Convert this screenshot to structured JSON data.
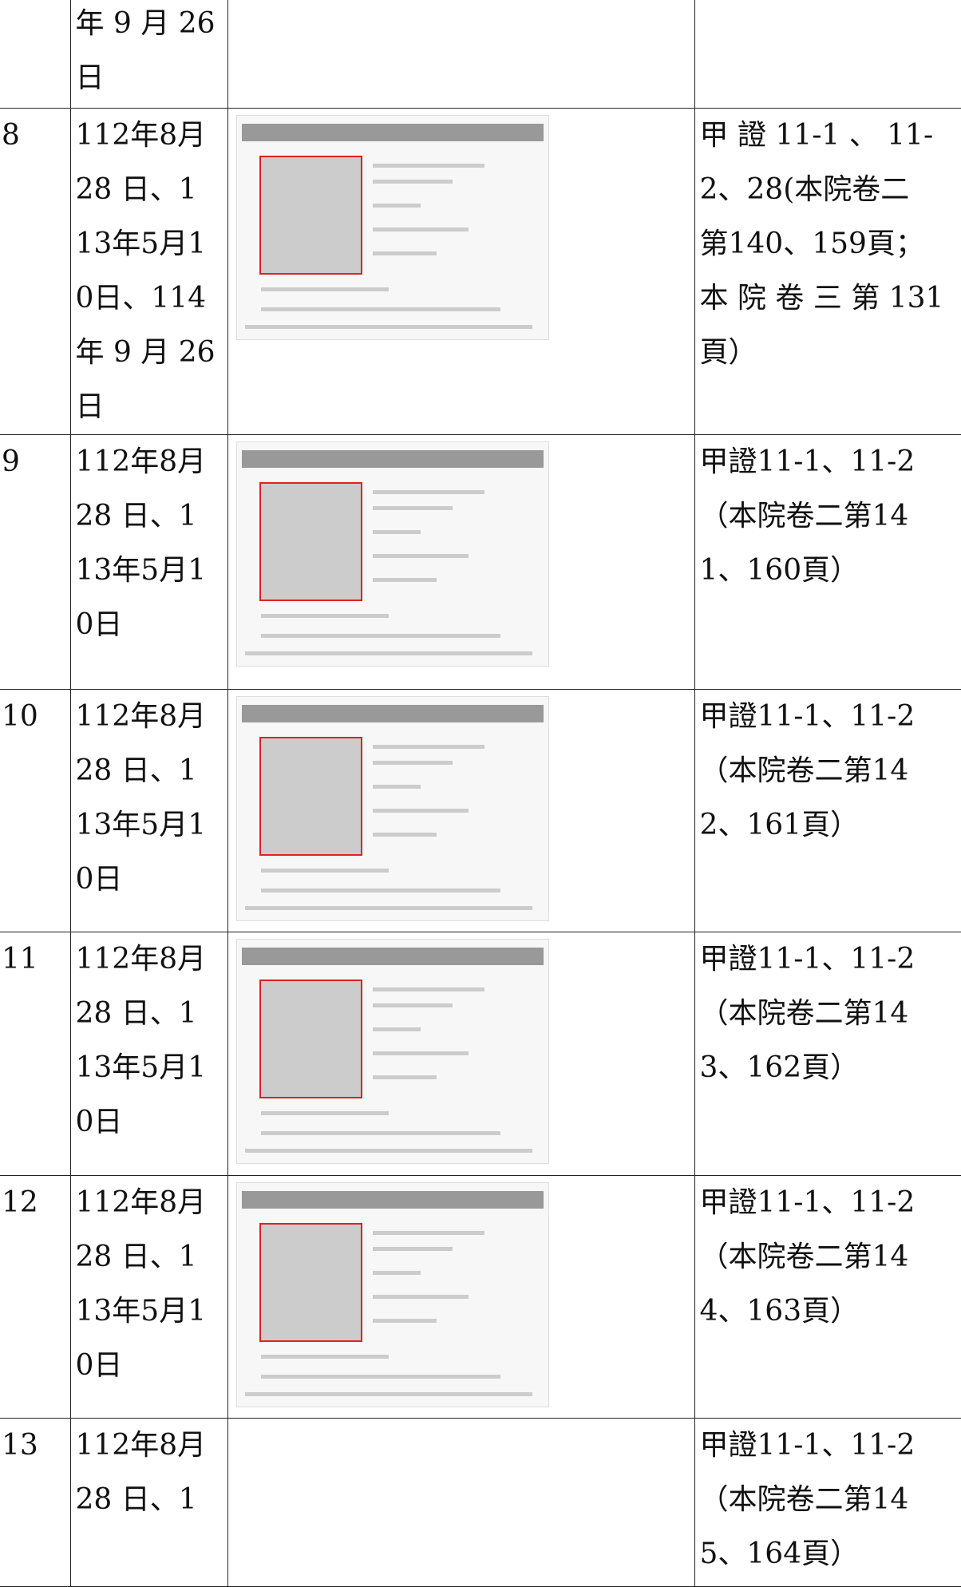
{
  "table": {
    "rows": [
      {
        "date_lines": [
          "年 9 月 26",
          "日"
        ],
        "evidence_lines": []
      },
      {
        "no": "8",
        "date_lines": [
          "112年8月",
          "28 日、1",
          "13年5月1",
          "0日、114",
          "年 9 月 26",
          "日"
        ],
        "evidence_lines": [
          "甲 證 11-1 、 11-",
          "2、28(本院卷二",
          "第140、159頁；",
          "本 院 卷 三 第 131",
          "頁）"
        ]
      },
      {
        "no": "9",
        "date_lines": [
          "112年8月",
          "28 日、1",
          "13年5月1",
          "0日"
        ],
        "evidence_lines": [
          "甲證11-1、11-2",
          "（本院卷二第14",
          "1、160頁）"
        ]
      },
      {
        "no": "10",
        "date_lines": [
          "112年8月",
          "28 日、1",
          "13年5月1",
          "0日"
        ],
        "evidence_lines": [
          "甲證11-1、11-2",
          "（本院卷二第14",
          "2、161頁）"
        ]
      },
      {
        "no": "11",
        "date_lines": [
          "112年8月",
          "28 日、1",
          "13年5月1",
          "0日"
        ],
        "evidence_lines": [
          "甲證11-1、11-2",
          "（本院卷二第14",
          "3、162頁）"
        ]
      },
      {
        "no": "12",
        "date_lines": [
          "112年8月",
          "28 日、1",
          "13年5月1",
          "0日"
        ],
        "evidence_lines": [
          "甲證11-1、11-2",
          "（本院卷二第14",
          "4、163頁）"
        ]
      },
      {
        "no": "13",
        "date_lines": [
          "112年8月",
          "28 日、1"
        ],
        "evidence_lines": [
          "甲證11-1、11-2",
          "（本院卷二第14",
          "5、164頁）"
        ]
      }
    ]
  }
}
